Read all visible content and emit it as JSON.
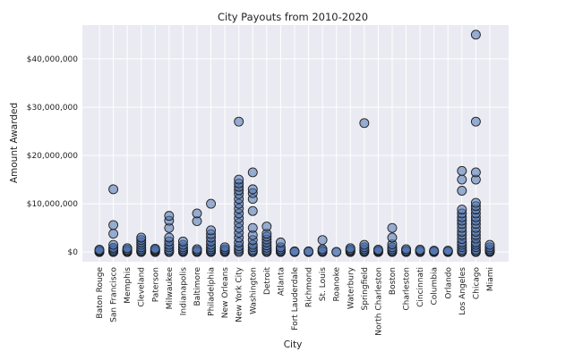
{
  "chart_data": {
    "type": "scatter",
    "title": "City Payouts from 2010-2020",
    "xlabel": "City",
    "ylabel": "Amount Awarded",
    "categories": [
      "Baton Rouge",
      "San Francisco",
      "Memphis",
      "Cleveland",
      "Paterson",
      "Milwaukee",
      "Indianapolis",
      "Baltimore",
      "Philadelphia",
      "New Orleans",
      "New York City",
      "Washington",
      "Detroit",
      "Atlanta",
      "Fort Lauderdale",
      "Richmond",
      "St. Louis",
      "Roanoke",
      "Waterbury",
      "Springfield",
      "North Charleston",
      "Boston",
      "Charleston",
      "Cincinnati",
      "Columbia",
      "Orlando",
      "Los Angeles",
      "Chicago",
      "Miami"
    ],
    "yticks": [
      0,
      10000000,
      20000000,
      30000000,
      40000000
    ],
    "ytick_labels": [
      "$0",
      "$10,000,000",
      "$20,000,000",
      "$30,000,000",
      "$40,000,000"
    ],
    "ylim": [
      -2000000,
      47000000
    ],
    "grid": true,
    "points": {
      "Baton Rouge": [
        0,
        50000,
        150000,
        300000,
        500000
      ],
      "San Francisco": [
        0,
        100000,
        300000,
        600000,
        900000,
        1500000,
        3800000,
        5600000,
        13000000
      ],
      "Memphis": [
        0,
        100000,
        250000,
        500000,
        800000
      ],
      "Cleveland": [
        0,
        100000,
        300000,
        600000,
        1000000,
        1500000,
        2000000,
        2500000,
        3000000
      ],
      "Paterson": [
        0,
        100000,
        300000,
        500000,
        700000
      ],
      "Milwaukee": [
        0,
        200000,
        500000,
        1000000,
        1500000,
        2200000,
        3000000,
        5000000,
        6500000,
        7500000
      ],
      "Indianapolis": [
        0,
        100000,
        300000,
        600000,
        1000000,
        1500000,
        2200000
      ],
      "Baltimore": [
        0,
        100000,
        300000,
        600000,
        6400000,
        8000000
      ],
      "Philadelphia": [
        0,
        100000,
        300000,
        600000,
        1000000,
        1500000,
        2200000,
        3000000,
        3700000,
        4500000,
        10000000
      ],
      "New Orleans": [
        0,
        100000,
        300000,
        600000,
        1000000
      ],
      "New York City": [
        0,
        300000,
        700000,
        1200000,
        2000000,
        3000000,
        4000000,
        5000000,
        6000000,
        7000000,
        8000000,
        9000000,
        10000000,
        11000000,
        12000000,
        12800000,
        13500000,
        14200000,
        15000000,
        27000000
      ],
      "Washington": [
        0,
        200000,
        500000,
        1000000,
        1500000,
        2500000,
        3500000,
        5000000,
        8500000,
        11000000,
        12200000,
        13000000,
        16500000
      ],
      "Detroit": [
        0,
        200000,
        500000,
        900000,
        1400000,
        2000000,
        2600000,
        3200000,
        3800000,
        5300000
      ],
      "Atlanta": [
        0,
        100000,
        300000,
        600000,
        1000000,
        2000000
      ],
      "Fort Lauderdale": [
        0,
        50000,
        150000
      ],
      "Richmond": [
        0,
        50000,
        150000
      ],
      "St. Louis": [
        0,
        100000,
        300000,
        600000,
        2500000
      ],
      "Roanoke": [
        0,
        50000
      ],
      "Waterbury": [
        0,
        100000,
        300000,
        500000,
        800000
      ],
      "Springfield": [
        0,
        100000,
        300000,
        600000,
        1000000,
        1500000,
        26700000
      ],
      "North Charleston": [
        0,
        50000,
        150000,
        300000,
        500000
      ],
      "Boston": [
        0,
        100000,
        300000,
        600000,
        1000000,
        1600000,
        3000000,
        5000000
      ],
      "Charleston": [
        0,
        100000,
        300000,
        600000
      ],
      "Cincinnati": [
        0,
        100000,
        300000,
        500000
      ],
      "Columbia": [
        0,
        50000,
        150000,
        300000
      ],
      "Orlando": [
        0,
        50000,
        150000,
        300000
      ],
      "Los Angeles": [
        0,
        200000,
        500000,
        1000000,
        1500000,
        2000000,
        2700000,
        3500000,
        4200000,
        5000000,
        5800000,
        6500000,
        7200000,
        8000000,
        8800000,
        12700000,
        15000000,
        16800000
      ],
      "Chicago": [
        0,
        200000,
        500000,
        1000000,
        1500000,
        2000000,
        2800000,
        3500000,
        4200000,
        5000000,
        5800000,
        6500000,
        7200000,
        8000000,
        8800000,
        9500000,
        10200000,
        15000000,
        16500000,
        27000000,
        45000000
      ],
      "Miami": [
        0,
        100000,
        300000,
        600000,
        1000000,
        1500000
      ]
    }
  }
}
